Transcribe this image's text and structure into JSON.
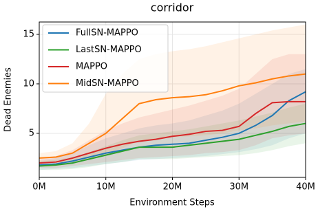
{
  "chart_data": {
    "type": "line",
    "title": "corridor",
    "x_label": "Environment Steps",
    "y_label": "Dead Enemies",
    "x": [
      0,
      2.5,
      5,
      7.5,
      10,
      12.5,
      15,
      17.5,
      20,
      22.5,
      25,
      27.5,
      30,
      32.5,
      35,
      37.5,
      40
    ],
    "xlim": [
      0,
      40
    ],
    "xticks": [
      {
        "value": 0,
        "label": "0M"
      },
      {
        "value": 10,
        "label": "10M"
      },
      {
        "value": 20,
        "label": "20M"
      },
      {
        "value": 30,
        "label": "30M"
      },
      {
        "value": 40,
        "label": "40M"
      }
    ],
    "ylim": [
      0.55,
      16.25
    ],
    "yticks": [
      5,
      10,
      15
    ],
    "grid": true,
    "legend": "upper-left",
    "series": [
      {
        "name": "FullSN-MAPPO",
        "color": "#1f77b4",
        "values": [
          1.8,
          1.9,
          2.2,
          2.6,
          3.0,
          3.3,
          3.6,
          3.8,
          3.9,
          4.0,
          4.3,
          4.6,
          5.0,
          5.8,
          6.8,
          8.3,
          9.2
        ],
        "upper": [
          2.3,
          2.5,
          3.0,
          3.8,
          4.5,
          5.0,
          5.5,
          5.8,
          6.0,
          6.3,
          6.8,
          7.3,
          8.0,
          9.0,
          10.0,
          11.0,
          11.5
        ],
        "lower": [
          1.3,
          1.4,
          1.5,
          1.7,
          1.9,
          2.1,
          2.3,
          2.4,
          2.5,
          2.6,
          2.7,
          2.9,
          3.1,
          3.4,
          3.8,
          4.5,
          5.0
        ]
      },
      {
        "name": "LastSN-MAPPO",
        "color": "#2ca02c",
        "values": [
          1.7,
          1.8,
          2.0,
          2.4,
          2.8,
          3.2,
          3.6,
          3.6,
          3.6,
          3.8,
          4.0,
          4.2,
          4.4,
          4.8,
          5.2,
          5.7,
          6.0
        ],
        "upper": [
          2.2,
          2.3,
          2.6,
          3.1,
          3.7,
          4.3,
          4.8,
          5.0,
          5.2,
          5.4,
          5.7,
          6.0,
          6.3,
          6.7,
          7.1,
          7.6,
          8.0
        ],
        "lower": [
          1.3,
          1.3,
          1.4,
          1.6,
          1.9,
          2.1,
          2.4,
          2.4,
          2.4,
          2.5,
          2.6,
          2.7,
          2.8,
          3.0,
          3.3,
          3.7,
          4.0
        ]
      },
      {
        "name": "MAPPO",
        "color": "#d62728",
        "values": [
          2.0,
          2.1,
          2.5,
          3.0,
          3.5,
          3.9,
          4.2,
          4.4,
          4.7,
          4.9,
          5.2,
          5.3,
          5.7,
          7.0,
          8.1,
          8.2,
          8.2
        ],
        "upper": [
          2.5,
          2.7,
          3.3,
          4.3,
          5.3,
          6.0,
          6.6,
          7.0,
          7.4,
          7.8,
          8.3,
          8.8,
          9.5,
          11.0,
          12.5,
          13.0,
          13.0
        ],
        "lower": [
          1.5,
          1.5,
          1.7,
          1.9,
          2.1,
          2.3,
          2.5,
          2.6,
          2.7,
          2.8,
          3.0,
          3.1,
          3.3,
          3.8,
          4.5,
          4.8,
          5.0
        ]
      },
      {
        "name": "MidSN-MAPPO",
        "color": "#ff7f0e",
        "values": [
          2.5,
          2.6,
          3.0,
          4.0,
          5.0,
          6.5,
          8.0,
          8.4,
          8.6,
          8.7,
          8.9,
          9.3,
          9.8,
          10.1,
          10.5,
          10.8,
          11.0
        ],
        "upper": [
          3.0,
          3.2,
          4.0,
          6.0,
          9.0,
          11.0,
          12.5,
          13.0,
          13.3,
          13.5,
          13.8,
          14.2,
          14.6,
          15.0,
          15.4,
          15.7,
          16.0
        ],
        "lower": [
          2.0,
          2.0,
          2.1,
          2.4,
          2.8,
          3.5,
          4.2,
          4.4,
          4.6,
          4.7,
          4.8,
          5.0,
          5.3,
          5.5,
          5.8,
          6.0,
          6.2
        ]
      }
    ]
  }
}
